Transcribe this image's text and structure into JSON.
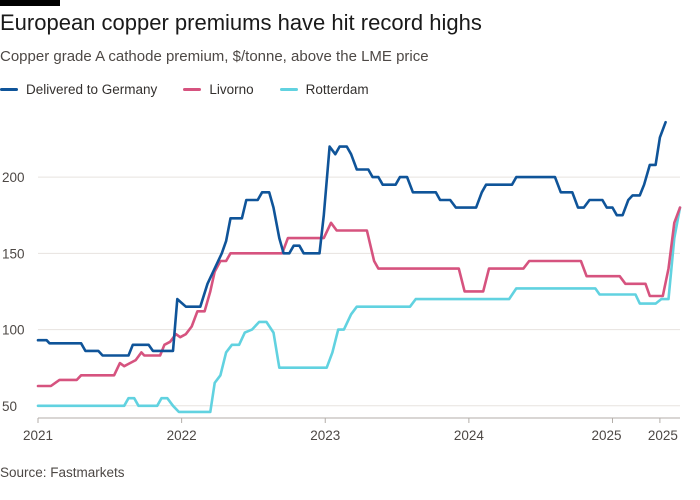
{
  "title": "European copper premiums have hit record highs",
  "subtitle": "Copper grade A cathode premium, $/tonne, above the LME price",
  "source": "Source: Fastmarkets",
  "chart_data": {
    "type": "line",
    "xlabel": "",
    "ylabel": "",
    "ylim": [
      42,
      244
    ],
    "xlim": [
      2021.0,
      2025.47
    ],
    "y_ticks": [
      50,
      100,
      150,
      200
    ],
    "x_ticks": [
      {
        "value": 2021.0,
        "label": "2021"
      },
      {
        "value": 2022.0,
        "label": "2022"
      },
      {
        "value": 2023.0,
        "label": "2023"
      },
      {
        "value": 2024.0,
        "label": "2024"
      },
      {
        "value": 2025.0,
        "label": "2025"
      },
      {
        "value": 2025.33,
        "label": "2025"
      }
    ],
    "grid": "horizontal",
    "legend_position": "top-left",
    "series": [
      {
        "name": "Delivered to Germany",
        "color": "#0f5499",
        "points": [
          [
            2021.0,
            93
          ],
          [
            2021.06,
            93
          ],
          [
            2021.08,
            91
          ],
          [
            2021.3,
            91
          ],
          [
            2021.33,
            86
          ],
          [
            2021.42,
            86
          ],
          [
            2021.45,
            83
          ],
          [
            2021.63,
            83
          ],
          [
            2021.66,
            90
          ],
          [
            2021.77,
            90
          ],
          [
            2021.8,
            86
          ],
          [
            2021.94,
            86
          ],
          [
            2021.97,
            120
          ],
          [
            2022.03,
            115
          ],
          [
            2022.13,
            115
          ],
          [
            2022.18,
            130
          ],
          [
            2022.28,
            150
          ],
          [
            2022.31,
            158
          ],
          [
            2022.34,
            173
          ],
          [
            2022.42,
            173
          ],
          [
            2022.45,
            185
          ],
          [
            2022.53,
            185
          ],
          [
            2022.56,
            190
          ],
          [
            2022.61,
            190
          ],
          [
            2022.64,
            180
          ],
          [
            2022.68,
            160
          ],
          [
            2022.71,
            150
          ],
          [
            2022.75,
            150
          ],
          [
            2022.78,
            155
          ],
          [
            2022.82,
            155
          ],
          [
            2022.85,
            150
          ],
          [
            2022.96,
            150
          ],
          [
            2022.99,
            175
          ],
          [
            2023.03,
            220
          ],
          [
            2023.07,
            215
          ],
          [
            2023.1,
            220
          ],
          [
            2023.15,
            220
          ],
          [
            2023.18,
            215
          ],
          [
            2023.22,
            205
          ],
          [
            2023.3,
            205
          ],
          [
            2023.33,
            200
          ],
          [
            2023.37,
            200
          ],
          [
            2023.4,
            195
          ],
          [
            2023.49,
            195
          ],
          [
            2023.52,
            200
          ],
          [
            2023.57,
            200
          ],
          [
            2023.61,
            190
          ],
          [
            2023.77,
            190
          ],
          [
            2023.8,
            185
          ],
          [
            2023.87,
            185
          ],
          [
            2023.91,
            180
          ],
          [
            2024.05,
            180
          ],
          [
            2024.09,
            190
          ],
          [
            2024.12,
            195
          ],
          [
            2024.3,
            195
          ],
          [
            2024.33,
            200
          ],
          [
            2024.6,
            200
          ],
          [
            2024.64,
            190
          ],
          [
            2024.72,
            190
          ],
          [
            2024.76,
            180
          ],
          [
            2024.8,
            180
          ],
          [
            2024.84,
            185
          ],
          [
            2024.93,
            185
          ],
          [
            2024.96,
            180
          ],
          [
            2025.0,
            180
          ],
          [
            2025.03,
            175
          ],
          [
            2025.07,
            175
          ],
          [
            2025.11,
            185
          ],
          [
            2025.14,
            188
          ],
          [
            2025.19,
            188
          ],
          [
            2025.22,
            195
          ],
          [
            2025.26,
            208
          ],
          [
            2025.3,
            208
          ],
          [
            2025.33,
            226
          ],
          [
            2025.37,
            236
          ]
        ]
      },
      {
        "name": "Livorno",
        "color": "#d6537f",
        "points": [
          [
            2021.0,
            63
          ],
          [
            2021.09,
            63
          ],
          [
            2021.15,
            67
          ],
          [
            2021.27,
            67
          ],
          [
            2021.3,
            70
          ],
          [
            2021.53,
            70
          ],
          [
            2021.57,
            78
          ],
          [
            2021.6,
            76
          ],
          [
            2021.68,
            80
          ],
          [
            2021.72,
            85
          ],
          [
            2021.74,
            83
          ],
          [
            2021.85,
            83
          ],
          [
            2021.88,
            90
          ],
          [
            2021.92,
            92
          ],
          [
            2021.96,
            97
          ],
          [
            2021.99,
            95
          ],
          [
            2022.03,
            97
          ],
          [
            2022.07,
            102
          ],
          [
            2022.11,
            112
          ],
          [
            2022.16,
            112
          ],
          [
            2022.2,
            125
          ],
          [
            2022.23,
            138
          ],
          [
            2022.27,
            145
          ],
          [
            2022.31,
            145
          ],
          [
            2022.34,
            150
          ],
          [
            2022.7,
            150
          ],
          [
            2022.74,
            160
          ],
          [
            2022.99,
            160
          ],
          [
            2023.04,
            170
          ],
          [
            2023.08,
            165
          ],
          [
            2023.29,
            165
          ],
          [
            2023.34,
            145
          ],
          [
            2023.37,
            140
          ],
          [
            2023.93,
            140
          ],
          [
            2023.97,
            125
          ],
          [
            2024.1,
            125
          ],
          [
            2024.14,
            140
          ],
          [
            2024.38,
            140
          ],
          [
            2024.42,
            145
          ],
          [
            2024.78,
            145
          ],
          [
            2024.82,
            135
          ],
          [
            2025.05,
            135
          ],
          [
            2025.09,
            130
          ],
          [
            2025.23,
            130
          ],
          [
            2025.26,
            122
          ],
          [
            2025.35,
            122
          ],
          [
            2025.39,
            140
          ],
          [
            2025.43,
            170
          ],
          [
            2025.47,
            180
          ]
        ]
      },
      {
        "name": "Rotterdam",
        "color": "#61d2e0",
        "points": [
          [
            2021.0,
            50
          ],
          [
            2021.6,
            50
          ],
          [
            2021.63,
            55
          ],
          [
            2021.67,
            55
          ],
          [
            2021.7,
            50
          ],
          [
            2021.83,
            50
          ],
          [
            2021.86,
            55
          ],
          [
            2021.9,
            55
          ],
          [
            2021.94,
            50
          ],
          [
            2021.98,
            46
          ],
          [
            2022.2,
            46
          ],
          [
            2022.23,
            65
          ],
          [
            2022.27,
            70
          ],
          [
            2022.31,
            85
          ],
          [
            2022.35,
            90
          ],
          [
            2022.4,
            90
          ],
          [
            2022.44,
            98
          ],
          [
            2022.49,
            100
          ],
          [
            2022.54,
            105
          ],
          [
            2022.59,
            105
          ],
          [
            2022.64,
            98
          ],
          [
            2022.68,
            75
          ],
          [
            2023.01,
            75
          ],
          [
            2023.05,
            85
          ],
          [
            2023.09,
            100
          ],
          [
            2023.13,
            100
          ],
          [
            2023.18,
            110
          ],
          [
            2023.22,
            115
          ],
          [
            2023.59,
            115
          ],
          [
            2023.63,
            120
          ],
          [
            2024.28,
            120
          ],
          [
            2024.33,
            127
          ],
          [
            2024.88,
            127
          ],
          [
            2024.91,
            123
          ],
          [
            2025.16,
            123
          ],
          [
            2025.19,
            117
          ],
          [
            2025.3,
            117
          ],
          [
            2025.34,
            120
          ],
          [
            2025.39,
            120
          ],
          [
            2025.43,
            160
          ],
          [
            2025.47,
            180
          ]
        ]
      }
    ]
  }
}
